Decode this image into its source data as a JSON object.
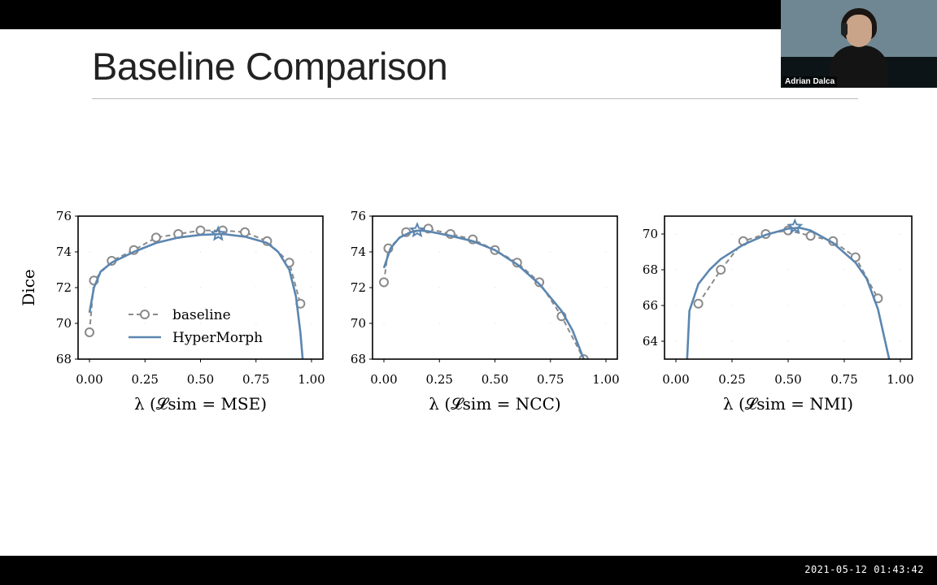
{
  "slide": {
    "title": "Baseline Comparison",
    "timestamp": "2021-05-12  01:43:42",
    "presenter": "Adrian Dalca"
  },
  "colors": {
    "baseline": "#8a8a8a",
    "hypermorph": "#5b86b0"
  },
  "chart_data": [
    {
      "type": "line",
      "xlabel": "λ (𝓛sim = MSE)",
      "ylabel": "Dice",
      "xlim": [
        0,
        1
      ],
      "ylim": [
        68,
        76
      ],
      "xticks": [
        "0.00",
        "0.25",
        "0.50",
        "0.75",
        "1.00"
      ],
      "yticks": [
        "68",
        "70",
        "72",
        "74",
        "76"
      ],
      "legend": "center-left",
      "series": [
        {
          "name": "baseline",
          "style": "dashed-circle",
          "x": [
            0.0,
            0.02,
            0.1,
            0.2,
            0.3,
            0.4,
            0.5,
            0.6,
            0.7,
            0.8,
            0.9,
            0.95
          ],
          "y": [
            69.5,
            72.4,
            73.5,
            74.1,
            74.8,
            75.0,
            75.2,
            75.2,
            75.1,
            74.6,
            73.4,
            71.1
          ]
        },
        {
          "name": "HyperMorph",
          "style": "solid",
          "x": [
            0.0,
            0.02,
            0.05,
            0.1,
            0.2,
            0.3,
            0.4,
            0.5,
            0.6,
            0.7,
            0.8,
            0.85,
            0.9,
            0.93,
            0.95,
            0.96
          ],
          "y": [
            70.6,
            72.0,
            72.9,
            73.4,
            74.0,
            74.5,
            74.8,
            74.95,
            75.0,
            74.85,
            74.5,
            74.0,
            73.0,
            71.5,
            69.5,
            68.0
          ]
        }
      ],
      "best": {
        "x": 0.58,
        "y": 75.0
      }
    },
    {
      "type": "line",
      "xlabel": "λ (𝓛sim = NCC)",
      "ylabel": "",
      "xlim": [
        0,
        1
      ],
      "ylim": [
        68,
        76
      ],
      "xticks": [
        "0.00",
        "0.25",
        "0.50",
        "0.75",
        "1.00"
      ],
      "yticks": [
        "68",
        "70",
        "72",
        "74",
        "76"
      ],
      "series": [
        {
          "name": "baseline",
          "style": "dashed-circle",
          "x": [
            0.0,
            0.02,
            0.1,
            0.2,
            0.3,
            0.4,
            0.5,
            0.6,
            0.7,
            0.8,
            0.9
          ],
          "y": [
            72.3,
            74.2,
            75.1,
            75.3,
            75.0,
            74.7,
            74.1,
            73.4,
            72.3,
            70.4,
            68.0
          ]
        },
        {
          "name": "HyperMorph",
          "style": "solid",
          "x": [
            0.0,
            0.03,
            0.07,
            0.12,
            0.16,
            0.2,
            0.3,
            0.4,
            0.5,
            0.6,
            0.7,
            0.8,
            0.85,
            0.9
          ],
          "y": [
            73.1,
            74.2,
            74.8,
            75.1,
            75.2,
            75.15,
            74.9,
            74.6,
            74.1,
            73.3,
            72.2,
            70.7,
            69.6,
            68.0
          ]
        }
      ],
      "best": {
        "x": 0.15,
        "y": 75.2
      }
    },
    {
      "type": "line",
      "xlabel": "λ (𝓛sim = NMI)",
      "ylabel": "",
      "xlim": [
        0,
        1
      ],
      "ylim": [
        63,
        71
      ],
      "xticks": [
        "0.00",
        "0.25",
        "0.50",
        "0.75",
        "1.00"
      ],
      "yticks": [
        "64",
        "66",
        "68",
        "70"
      ],
      "series": [
        {
          "name": "baseline",
          "style": "dashed-circle",
          "x": [
            0.1,
            0.2,
            0.3,
            0.4,
            0.5,
            0.6,
            0.7,
            0.8,
            0.9
          ],
          "y": [
            66.1,
            68.0,
            69.6,
            70.0,
            70.2,
            69.9,
            69.6,
            68.7,
            66.4
          ]
        },
        {
          "name": "HyperMorph",
          "style": "solid",
          "x": [
            0.05,
            0.06,
            0.1,
            0.15,
            0.2,
            0.3,
            0.4,
            0.5,
            0.55,
            0.6,
            0.7,
            0.8,
            0.85,
            0.9,
            0.95
          ],
          "y": [
            63.0,
            65.7,
            67.2,
            68.0,
            68.6,
            69.4,
            69.95,
            70.3,
            70.35,
            70.2,
            69.5,
            68.4,
            67.5,
            65.8,
            63.0
          ]
        }
      ],
      "best": {
        "x": 0.53,
        "y": 70.4
      }
    }
  ]
}
